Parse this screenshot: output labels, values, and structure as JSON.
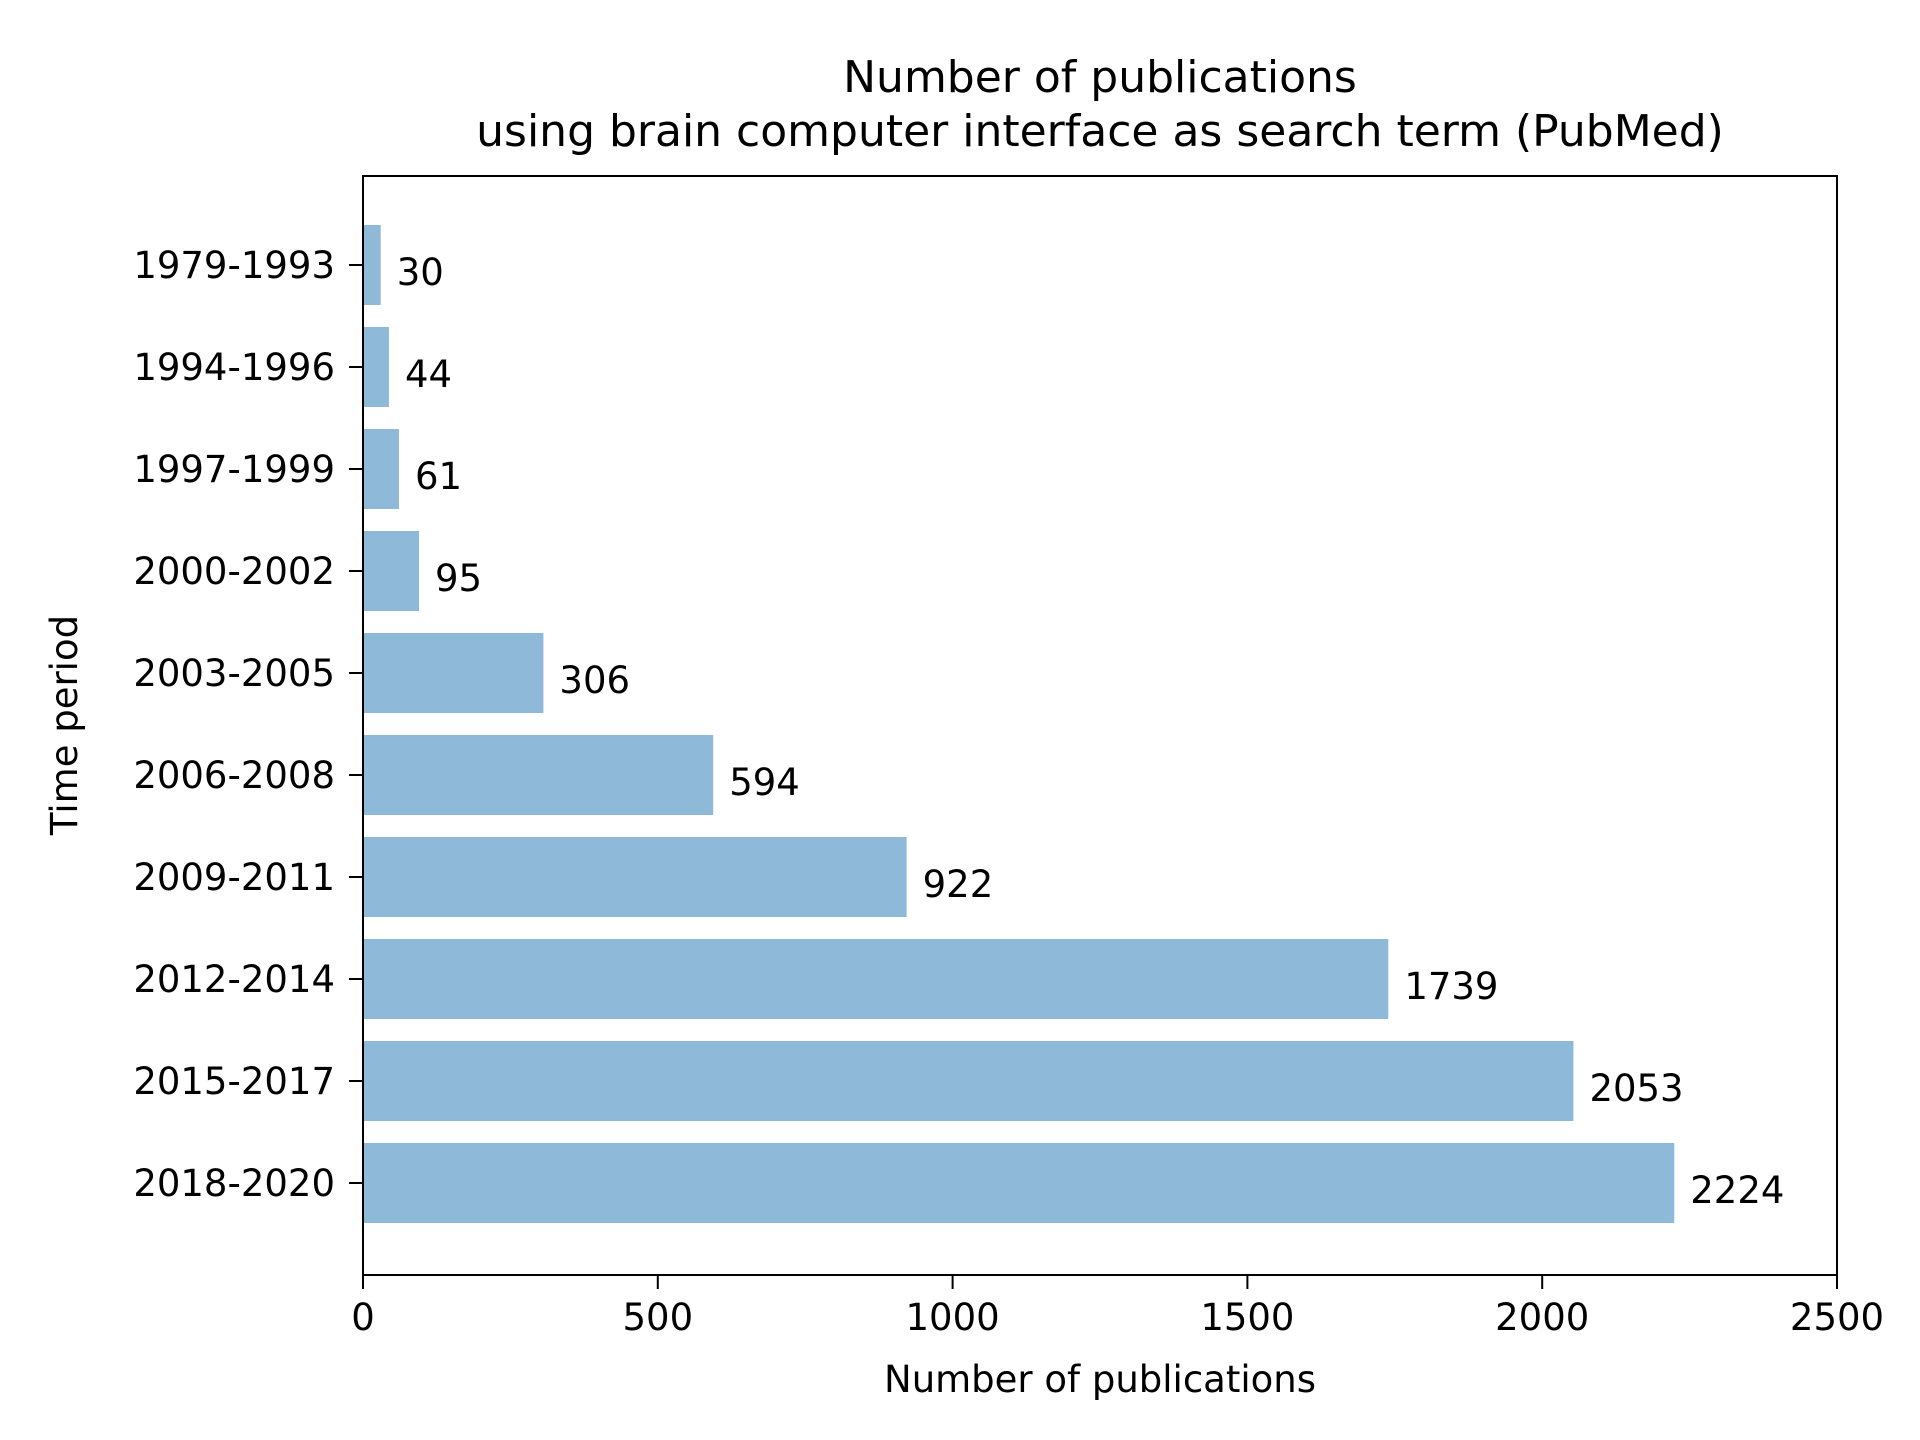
{
  "chart_data": {
    "type": "bar",
    "orientation": "horizontal",
    "title_lines": [
      "Number of publications",
      "using brain computer interface as search term (PubMed)"
    ],
    "xlabel": "Number of publications",
    "ylabel": "Time period",
    "xlim": [
      0,
      2500
    ],
    "xticks": [
      {
        "value": 0,
        "label": "0"
      },
      {
        "value": 500,
        "label": "500"
      },
      {
        "value": 1000,
        "label": "1000"
      },
      {
        "value": 1500,
        "label": "1500"
      },
      {
        "value": 2000,
        "label": "2000"
      },
      {
        "value": 2500,
        "label": "2500"
      }
    ],
    "categories": [
      "1979-1993",
      "1994-1996",
      "1997-1999",
      "2000-2002",
      "2003-2005",
      "2006-2008",
      "2009-2011",
      "2012-2014",
      "2015-2017",
      "2018-2020"
    ],
    "values": [
      30,
      44,
      61,
      95,
      306,
      594,
      922,
      1739,
      2053,
      2224
    ],
    "data_labels": [
      "30",
      "44",
      "61",
      "95",
      "306",
      "594",
      "922",
      "1739",
      "2053",
      "2224"
    ],
    "grid": false,
    "bar_color": "#8fb9d9"
  }
}
